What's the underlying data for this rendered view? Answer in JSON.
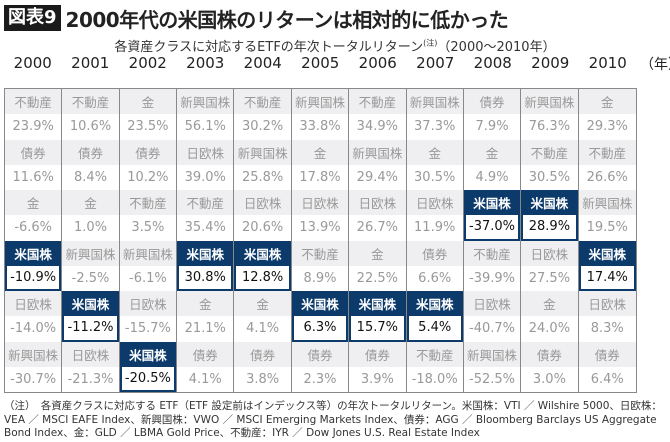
{
  "header": {
    "badge": "図表9",
    "title": "2000年代の米国株のリターンは相対的に低かった"
  },
  "subtitle": {
    "text": "各資産クラスに対応するETFの年次トータルリターン",
    "note_mark": "(注)",
    "range": "（2000〜2010年）"
  },
  "colors": {
    "highlight": "#0c3a6b",
    "label_bg": "#efeff1",
    "muted_text": "#999999"
  },
  "chart_data": {
    "type": "table",
    "title": "2000年代の米国株のリターンは相対的に低かった",
    "unit_label": "（年）",
    "highlight": "米国株",
    "columns": [
      {
        "year": "2000",
        "ranks": [
          {
            "asset": "不動産",
            "ret": "23.9%"
          },
          {
            "asset": "債券",
            "ret": "11.6%"
          },
          {
            "asset": "金",
            "ret": "-6.6%"
          },
          {
            "asset": "米国株",
            "ret": "-10.9%"
          },
          {
            "asset": "日欧株",
            "ret": "-14.0%"
          },
          {
            "asset": "新興国株",
            "ret": "-30.7%"
          }
        ]
      },
      {
        "year": "2001",
        "ranks": [
          {
            "asset": "不動産",
            "ret": "10.6%"
          },
          {
            "asset": "債券",
            "ret": "8.4%"
          },
          {
            "asset": "金",
            "ret": "1.0%"
          },
          {
            "asset": "新興国株",
            "ret": "-2.5%"
          },
          {
            "asset": "米国株",
            "ret": "-11.2%"
          },
          {
            "asset": "日欧株",
            "ret": "-21.3%"
          }
        ]
      },
      {
        "year": "2002",
        "ranks": [
          {
            "asset": "金",
            "ret": "23.5%"
          },
          {
            "asset": "債券",
            "ret": "10.2%"
          },
          {
            "asset": "不動産",
            "ret": "3.5%"
          },
          {
            "asset": "新興国株",
            "ret": "-6.1%"
          },
          {
            "asset": "日欧株",
            "ret": "-15.7%"
          },
          {
            "asset": "米国株",
            "ret": "-20.5%"
          }
        ]
      },
      {
        "year": "2003",
        "ranks": [
          {
            "asset": "新興国株",
            "ret": "56.1%"
          },
          {
            "asset": "日欧株",
            "ret": "39.0%"
          },
          {
            "asset": "不動産",
            "ret": "35.4%"
          },
          {
            "asset": "米国株",
            "ret": "30.8%"
          },
          {
            "asset": "金",
            "ret": "21.1%"
          },
          {
            "asset": "債券",
            "ret": "4.1%"
          }
        ]
      },
      {
        "year": "2004",
        "ranks": [
          {
            "asset": "不動産",
            "ret": "30.2%"
          },
          {
            "asset": "新興国株",
            "ret": "25.8%"
          },
          {
            "asset": "日欧株",
            "ret": "20.6%"
          },
          {
            "asset": "米国株",
            "ret": "12.8%"
          },
          {
            "asset": "金",
            "ret": "4.1%"
          },
          {
            "asset": "債券",
            "ret": "3.8%"
          }
        ]
      },
      {
        "year": "2005",
        "ranks": [
          {
            "asset": "新興国株",
            "ret": "33.8%"
          },
          {
            "asset": "金",
            "ret": "17.8%"
          },
          {
            "asset": "日欧株",
            "ret": "13.9%"
          },
          {
            "asset": "不動産",
            "ret": "8.9%"
          },
          {
            "asset": "米国株",
            "ret": "6.3%"
          },
          {
            "asset": "債券",
            "ret": "2.3%"
          }
        ]
      },
      {
        "year": "2006",
        "ranks": [
          {
            "asset": "不動産",
            "ret": "34.9%"
          },
          {
            "asset": "新興国株",
            "ret": "29.4%"
          },
          {
            "asset": "日欧株",
            "ret": "26.7%"
          },
          {
            "asset": "金",
            "ret": "22.5%"
          },
          {
            "asset": "米国株",
            "ret": "15.7%"
          },
          {
            "asset": "債券",
            "ret": "3.9%"
          }
        ]
      },
      {
        "year": "2007",
        "ranks": [
          {
            "asset": "新興国株",
            "ret": "37.3%"
          },
          {
            "asset": "金",
            "ret": "30.5%"
          },
          {
            "asset": "日欧株",
            "ret": "11.9%"
          },
          {
            "asset": "債券",
            "ret": "6.6%"
          },
          {
            "asset": "米国株",
            "ret": "5.4%"
          },
          {
            "asset": "不動産",
            "ret": "-18.0%"
          }
        ]
      },
      {
        "year": "2008",
        "ranks": [
          {
            "asset": "債券",
            "ret": "7.9%"
          },
          {
            "asset": "金",
            "ret": "4.9%"
          },
          {
            "asset": "米国株",
            "ret": "-37.0%"
          },
          {
            "asset": "不動産",
            "ret": "-39.9%"
          },
          {
            "asset": "日欧株",
            "ret": "-40.7%"
          },
          {
            "asset": "新興国株",
            "ret": "-52.5%"
          }
        ]
      },
      {
        "year": "2009",
        "ranks": [
          {
            "asset": "新興国株",
            "ret": "76.3%"
          },
          {
            "asset": "不動産",
            "ret": "30.5%"
          },
          {
            "asset": "米国株",
            "ret": "28.9%"
          },
          {
            "asset": "日欧株",
            "ret": "27.5%"
          },
          {
            "asset": "金",
            "ret": "24.0%"
          },
          {
            "asset": "債券",
            "ret": "3.0%"
          }
        ]
      },
      {
        "year": "2010",
        "ranks": [
          {
            "asset": "金",
            "ret": "29.3%"
          },
          {
            "asset": "不動産",
            "ret": "26.6%"
          },
          {
            "asset": "新興国株",
            "ret": "19.5%"
          },
          {
            "asset": "米国株",
            "ret": "17.4%"
          },
          {
            "asset": "日欧株",
            "ret": "8.3%"
          },
          {
            "asset": "債券",
            "ret": "6.4%"
          }
        ]
      }
    ]
  },
  "footnote": "（注）　各資産クラスに対応する ETF（ETF 設定前はインデックス等）の年次トータルリターン。米国株：VTI ／ Wilshire 5000、日欧株：VEA ／ MSCI EAFE Index、新興国株：VWO ／ MSCI Emerging Markets Index、債券：AGG ／ Bloomberg Barclays US Aggregate Bond Index、金：GLD ／ LBMA Gold Price、不動産：IYR ／ Dow Jones U.S. Real Estate Index"
}
